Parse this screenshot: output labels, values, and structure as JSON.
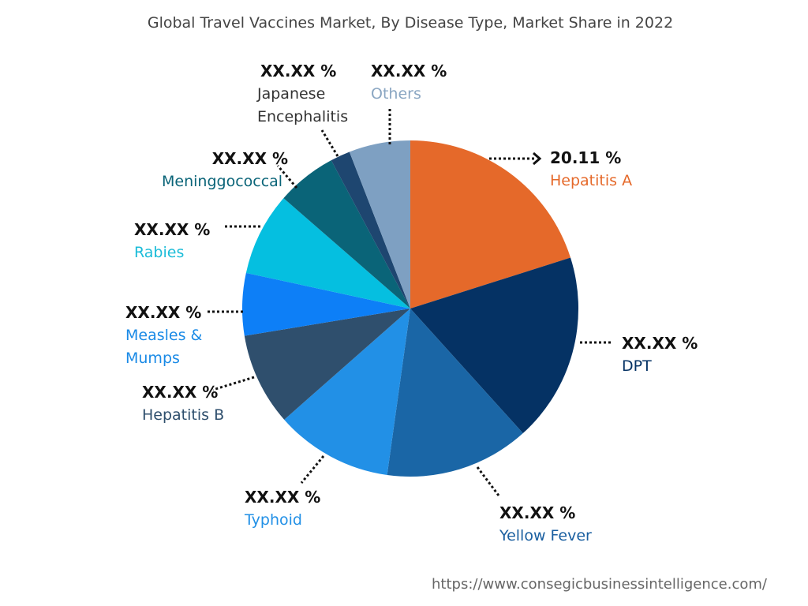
{
  "chart_data": {
    "type": "pie",
    "title": "Global Travel Vaccines Market, By Disease Type, Market Share in 2022",
    "categories": [
      "Hepatitis A",
      "DPT",
      "Yellow Fever",
      "Typhoid",
      "Hepatitis B",
      "Measles & Mumps",
      "Rabies",
      "Meninggococcal",
      "Japanese Encephalitis",
      "Others"
    ],
    "values": [
      20.11,
      18.2,
      13.9,
      11.3,
      8.9,
      6.0,
      8.0,
      5.8,
      1.9,
      5.9
    ],
    "value_labels": [
      "20.11 %",
      "XX.XX %",
      "XX.XX %",
      "XX.XX %",
      "XX.XX %",
      "XX.XX %",
      "XX.XX %",
      "XX.XX %",
      "XX.XX %",
      "XX.XX %"
    ],
    "colors": [
      "#e5692a",
      "#053264",
      "#1a66a6",
      "#2290e6",
      "#2f4f6d",
      "#0d7ff7",
      "#05bfe0",
      "#0a6478",
      "#1e4670",
      "#7ea0c2"
    ],
    "label_colors": [
      "#e5692a",
      "#053264",
      "#1a5fa0",
      "#2290e6",
      "#2f4f6d",
      "#1a8ae6",
      "#1bbcd8",
      "#0a6478",
      "#333333",
      "#8aa6c2"
    ],
    "source": "https://www.consegicbusinessintelligence.com/"
  }
}
